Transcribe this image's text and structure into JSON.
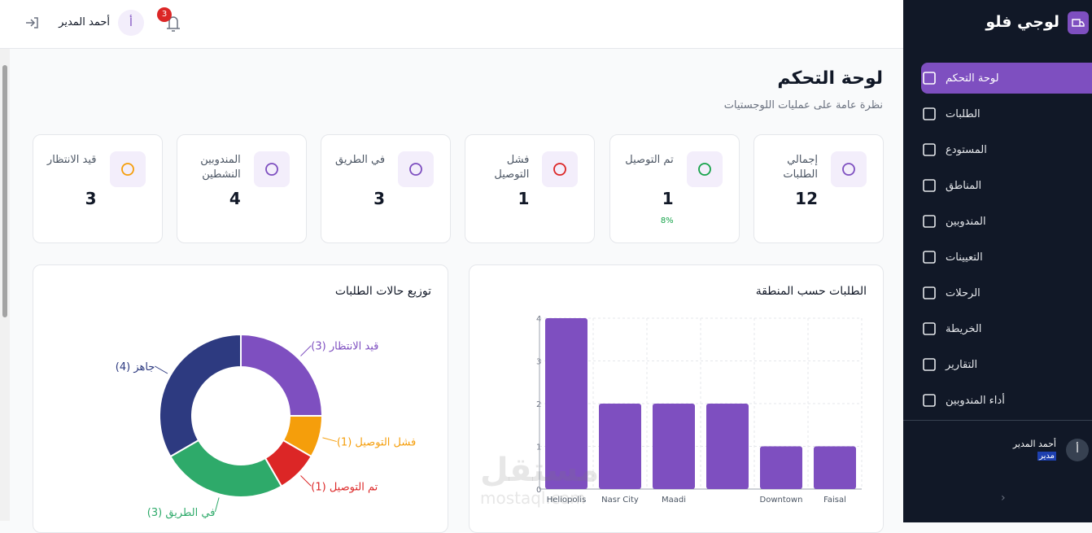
{
  "sidebar": {
    "brand": "لوجي فلو",
    "nav": [
      "لوحة التحكم",
      "الطلبات",
      "المستودع",
      "المناطق",
      "المندوبين",
      "التعيينات",
      "الرحلات",
      "الخريطة",
      "التقارير",
      "أداء المندوبين"
    ],
    "user": {
      "name": "أحمد المدير",
      "role": "مدير",
      "avatar": "أ"
    }
  },
  "header": {
    "notifications": 3,
    "avatar": "أ",
    "user_name": "أحمد المدير"
  },
  "page": {
    "title": "لوحة التحكم",
    "subtitle": "نظرة عامة على عمليات اللوجستيات"
  },
  "stats": [
    {
      "label": "إجمالي الطلبات",
      "value": 12
    },
    {
      "label": "تم التوصيل",
      "value": 1,
      "note": "8%"
    },
    {
      "label": "فشل التوصيل",
      "value": 1
    },
    {
      "label": "في الطريق",
      "value": 3
    },
    {
      "label": "المندوبين النشطين",
      "value": 4
    },
    {
      "label": "قيد الانتظار",
      "value": 3
    }
  ],
  "watermark": [
    "مستقل",
    "mostaql.com"
  ],
  "chart_data": [
    {
      "type": "bar",
      "title": "الطلبات حسب المنطقة",
      "categories": [
        "Heliopolis",
        "Nasr City",
        "Maadi",
        null,
        "Downtown",
        "Faisal"
      ],
      "values": [
        4,
        2,
        2,
        2,
        1,
        1
      ],
      "color": "#7e4fc0",
      "ylim": [
        0,
        4
      ],
      "yticks": [
        0,
        1,
        2,
        3,
        4
      ],
      "grid": true
    },
    {
      "type": "pie",
      "title": "توزيع حالات الطلبات",
      "values": [
        3,
        1,
        1,
        3,
        4
      ],
      "value_labels": [
        "قيد الانتظار (3)",
        "فشل التوصيل (1)",
        "تم التوصيل (1)",
        "في الطريق (3)",
        "جاهز (4)"
      ],
      "colors": [
        "#7e4fc0",
        "#f59e0b",
        "#dc2626",
        "#2eaa6a",
        "#2d3a80"
      ]
    }
  ]
}
